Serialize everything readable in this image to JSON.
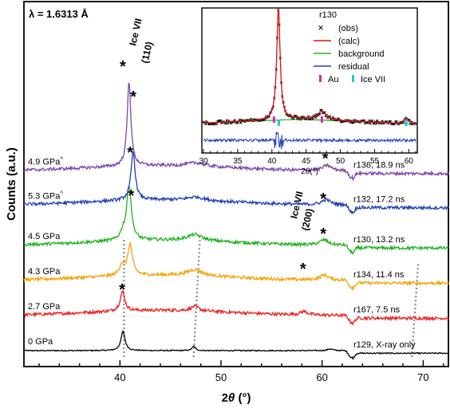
{
  "chart_data": [
    {
      "type": "line",
      "annotation": "λ = 1.6313 Å",
      "xlabel_main": "2",
      "xlabel_theta": "θ",
      "xlabel_unit": " (°)",
      "ylabel": "Counts (a.u.)",
      "xlim": [
        30.5,
        72.5
      ],
      "x_ticks": [
        40,
        50,
        60,
        70
      ],
      "peak_labels": [
        {
          "line1": "Ice VII",
          "line2": "(110)",
          "x": 41.3
        },
        {
          "line1": "Ice VII",
          "line2": "(200)",
          "x": 58.5
        }
      ],
      "series": [
        {
          "left_label": "0 GPa",
          "right_label": "r129, X-ray only",
          "color": "#000000",
          "baseline": 0,
          "star_x": null,
          "peaks": [
            [
              40.3,
              0.24,
              0.22
            ],
            [
              47.3,
              0.2,
              0.05
            ],
            [
              60.8,
              0.3,
              0.02
            ]
          ]
        },
        {
          "left_label": "2.7 GPa",
          "right_label": "r167, 7.5 ns",
          "color": "#ee1c1c",
          "baseline": 0.4,
          "star_x": 58.2,
          "peaks": [
            [
              40.25,
              0.28,
              0.22
            ],
            [
              47.4,
              0.5,
              0.05
            ],
            [
              58.2,
              0.45,
              0.04
            ]
          ]
        },
        {
          "left_label": "4.3 GPa",
          "right_label": "r134, 11.4 ns",
          "color": "#f5a000",
          "baseline": 0.8,
          "star_x": 60.2,
          "peaks": [
            [
              40.2,
              0.3,
              0.12
            ],
            [
              41.0,
              0.28,
              0.35
            ],
            [
              47.4,
              0.9,
              0.07
            ],
            [
              60.2,
              0.5,
              0.06
            ]
          ]
        },
        {
          "left_label": "4.5 GPa",
          "right_label": "r130, 13.2 ns",
          "color": "#1db31d",
          "baseline": 1.2,
          "star_x": 60.2,
          "peaks": [
            [
              40.3,
              0.3,
              0.08
            ],
            [
              40.9,
              0.28,
              0.62
            ],
            [
              47.4,
              0.9,
              0.07
            ],
            [
              60.2,
              0.5,
              0.06
            ]
          ]
        },
        {
          "left_label": "5.3 GPa",
          "left_label_sup": "^",
          "right_label": "r132, 17.2 ns",
          "color": "#1e40b8",
          "baseline": 1.66,
          "star_x": 60.4,
          "peaks": [
            [
              41.3,
              0.25,
              0.55
            ],
            [
              47.5,
              1.0,
              0.04
            ],
            [
              60.4,
              0.5,
              0.06
            ]
          ]
        },
        {
          "left_label": "4.9 GPa",
          "left_label_sup": "^",
          "right_label": "r136, 18.9 ns",
          "color": "#7a46a8",
          "baseline": 2.05,
          "star_x": 60.5,
          "peaks": [
            [
              40.9,
              0.22,
              0.96
            ],
            [
              47.5,
              1.0,
              0.04
            ],
            [
              60.5,
              0.5,
              0.06
            ]
          ]
        }
      ],
      "reference_lines_x": [
        40.4,
        47.6,
        69.2
      ]
    },
    {
      "type": "line",
      "title": "r130",
      "xlabel_main": "2",
      "xlabel_theta": "θ",
      "xlabel_unit": "(°)",
      "xlim": [
        30,
        61
      ],
      "x_ticks": [
        30,
        35,
        40,
        45,
        50,
        55,
        60
      ],
      "legend": [
        {
          "symbol": "×",
          "label": "(obs)",
          "color": "#000000"
        },
        {
          "symbol": "line",
          "label": "(calc)",
          "color": "#e01010"
        },
        {
          "symbol": "line",
          "label": "background",
          "color": "#22b022"
        },
        {
          "symbol": "line",
          "label": "residual",
          "color": "#1e40b8"
        },
        {
          "symbol": "bar",
          "label": "Au",
          "color": "#d22fa0"
        },
        {
          "symbol": "bar",
          "label": "Ice VII",
          "color": "#1ec8d0"
        }
      ],
      "au_ticks": [
        40.3,
        47.3
      ],
      "ice_ticks": [
        41.0,
        59.6
      ],
      "calc_peaks": [
        [
          40.95,
          0.3,
          1.0
        ],
        [
          47.3,
          0.7,
          0.08
        ],
        [
          59.6,
          0.35,
          0.05
        ]
      ],
      "background_level": 0.06
    }
  ]
}
